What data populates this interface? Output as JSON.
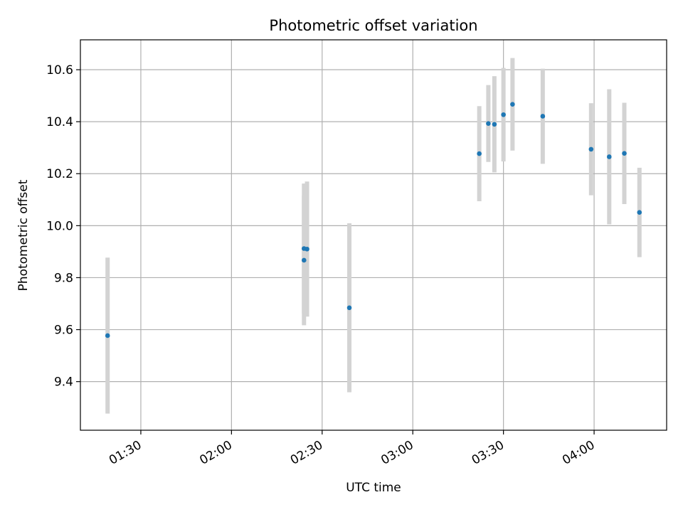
{
  "chart_data": {
    "type": "scatter",
    "title": "Photometric offset variation",
    "xlabel": "UTC time",
    "ylabel": "Photometric offset",
    "x_ticks": [
      "01:30",
      "02:00",
      "02:30",
      "03:00",
      "03:30",
      "04:00"
    ],
    "x_tick_minutes": [
      90,
      120,
      150,
      180,
      210,
      240
    ],
    "xlim_minutes": [
      70,
      264
    ],
    "ylim": [
      9.213,
      10.715
    ],
    "y_ticks": [
      9.4,
      9.6,
      9.8,
      10.0,
      10.2,
      10.4,
      10.6
    ],
    "y_tick_labels": [
      "9.4",
      "9.6",
      "9.8",
      "10.0",
      "10.2",
      "10.4",
      "10.6"
    ],
    "grid": true,
    "points": [
      {
        "time": "01:19",
        "y": 9.577,
        "err": 0.3
      },
      {
        "time": "02:24",
        "y": 9.912,
        "err": 0.25
      },
      {
        "time": "02:24",
        "y": 9.867,
        "err": 0.25
      },
      {
        "time": "02:25",
        "y": 9.91,
        "err": 0.26
      },
      {
        "time": "02:39",
        "y": 9.684,
        "err": 0.325
      },
      {
        "time": "03:22",
        "y": 10.277,
        "err": 0.183
      },
      {
        "time": "03:25",
        "y": 10.393,
        "err": 0.148
      },
      {
        "time": "03:27",
        "y": 10.39,
        "err": 0.185
      },
      {
        "time": "03:30",
        "y": 10.427,
        "err": 0.18
      },
      {
        "time": "03:33",
        "y": 10.467,
        "err": 0.178
      },
      {
        "time": "03:43",
        "y": 10.421,
        "err": 0.183
      },
      {
        "time": "03:59",
        "y": 10.294,
        "err": 0.177
      },
      {
        "time": "04:05",
        "y": 10.265,
        "err": 0.26
      },
      {
        "time": "04:10",
        "y": 10.278,
        "err": 0.195
      },
      {
        "time": "04:15",
        "y": 10.051,
        "err": 0.172
      }
    ],
    "colors": {
      "points": "#1f77b4",
      "errorbars": "#d3d3d3",
      "grid": "#b0b0b0"
    }
  }
}
